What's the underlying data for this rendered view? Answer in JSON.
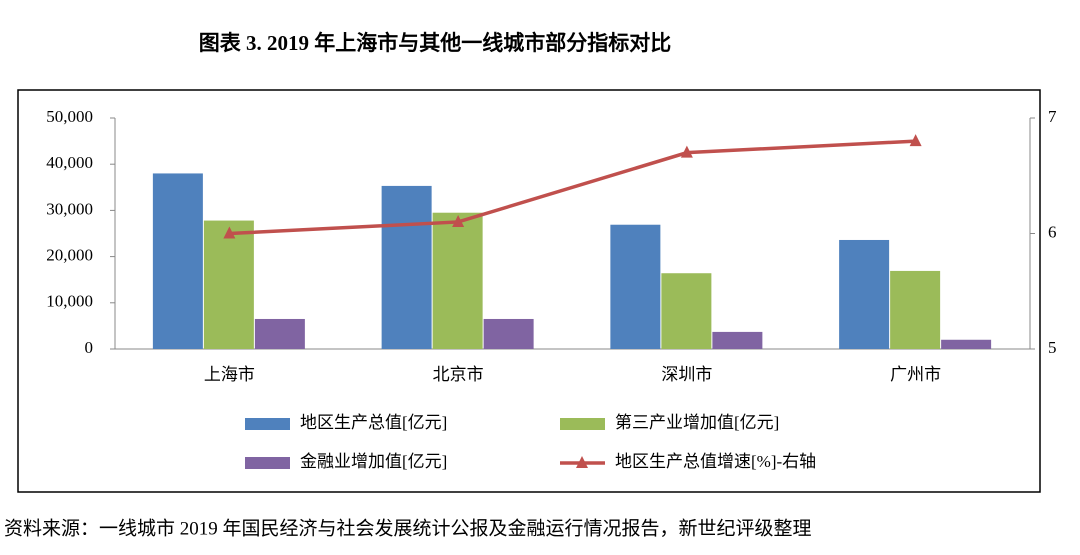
{
  "chart_data": {
    "type": "bar-line",
    "title": "图表 3. 2019 年上海市与其他一线城市部分指标对比",
    "categories": [
      "上海市",
      "北京市",
      "深圳市",
      "广州市"
    ],
    "series": [
      {
        "name": "地区生产总值[亿元]",
        "color": "#4f81bd",
        "type": "bar",
        "values": [
          38000,
          35300,
          26900,
          23600
        ]
      },
      {
        "name": "第三产业增加值[亿元]",
        "color": "#9bbb59",
        "type": "bar",
        "values": [
          27800,
          29500,
          16400,
          16900
        ]
      },
      {
        "name": "金融业增加值[亿元]",
        "color": "#8064a2",
        "type": "bar",
        "values": [
          6500,
          6500,
          3700,
          2000
        ]
      },
      {
        "name": "地区生产总值增速[%]-右轴",
        "color": "#c0504d",
        "type": "line",
        "axis": "y2",
        "values": [
          6.0,
          6.1,
          6.7,
          6.8
        ]
      }
    ],
    "ylim": [
      0,
      50000
    ],
    "yticks": [
      0,
      {
        "value": 10000,
        "label": "10,000"
      },
      {
        "value": 20000,
        "label": "20,000"
      },
      {
        "value": 30000,
        "label": "30,000"
      },
      {
        "value": 40000,
        "label": "40,000"
      },
      {
        "value": 50000,
        "label": "50,000"
      }
    ],
    "y2lim": [
      5,
      7
    ],
    "y2ticks": [
      5,
      6,
      7
    ],
    "source": "资料来源：一线城市 2019 年国民经济与社会发展统计公报及金融运行情况报告，新世纪评级整理"
  }
}
